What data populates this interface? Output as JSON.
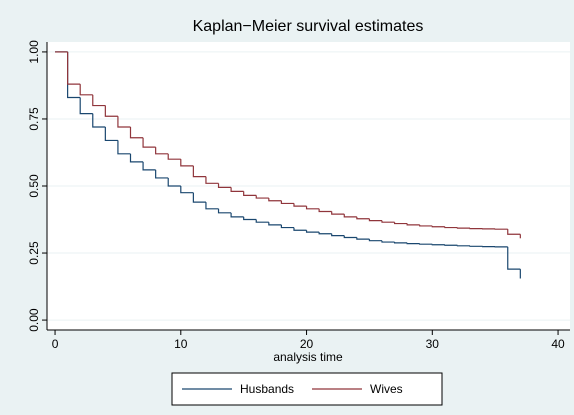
{
  "chart_data": {
    "type": "line",
    "step": true,
    "title": "Kaplan−Meier survival estimates",
    "xlabel": "analysis time",
    "x": [
      0,
      1,
      2,
      3,
      4,
      5,
      6,
      7,
      8,
      9,
      10,
      11,
      12,
      13,
      14,
      15,
      16,
      17,
      18,
      19,
      20,
      21,
      22,
      23,
      24,
      25,
      26,
      27,
      28,
      29,
      30,
      31,
      32,
      33,
      34,
      35,
      36,
      37
    ],
    "series": [
      {
        "name": "Husbands",
        "color": "#1a476f",
        "values": [
          1.0,
          0.83,
          0.77,
          0.72,
          0.67,
          0.62,
          0.59,
          0.56,
          0.53,
          0.5,
          0.475,
          0.44,
          0.415,
          0.4,
          0.385,
          0.375,
          0.365,
          0.355,
          0.345,
          0.335,
          0.328,
          0.322,
          0.315,
          0.308,
          0.302,
          0.296,
          0.291,
          0.288,
          0.285,
          0.283,
          0.281,
          0.279,
          0.277,
          0.275,
          0.274,
          0.273,
          0.19,
          0.155
        ]
      },
      {
        "name": "Wives",
        "color": "#90353b",
        "values": [
          1.0,
          0.88,
          0.84,
          0.8,
          0.76,
          0.72,
          0.68,
          0.645,
          0.62,
          0.6,
          0.575,
          0.535,
          0.51,
          0.495,
          0.48,
          0.465,
          0.455,
          0.445,
          0.435,
          0.425,
          0.415,
          0.405,
          0.395,
          0.385,
          0.378,
          0.371,
          0.365,
          0.36,
          0.355,
          0.351,
          0.348,
          0.345,
          0.343,
          0.341,
          0.34,
          0.339,
          0.32,
          0.305
        ]
      }
    ],
    "xlim": [
      -0.64,
      40.95
    ],
    "xticks": [
      0,
      10,
      20,
      30,
      40
    ],
    "ylim": [
      -0.037,
      1.037
    ],
    "yticks": [
      {
        "value": 0,
        "label": "0.00"
      },
      {
        "value": 0.25,
        "label": "0.25"
      },
      {
        "value": 0.5,
        "label": "0.50"
      },
      {
        "value": 0.75,
        "label": "0.75"
      },
      {
        "value": 1,
        "label": "1.00"
      }
    ],
    "grid": true,
    "legend": "bottom"
  }
}
